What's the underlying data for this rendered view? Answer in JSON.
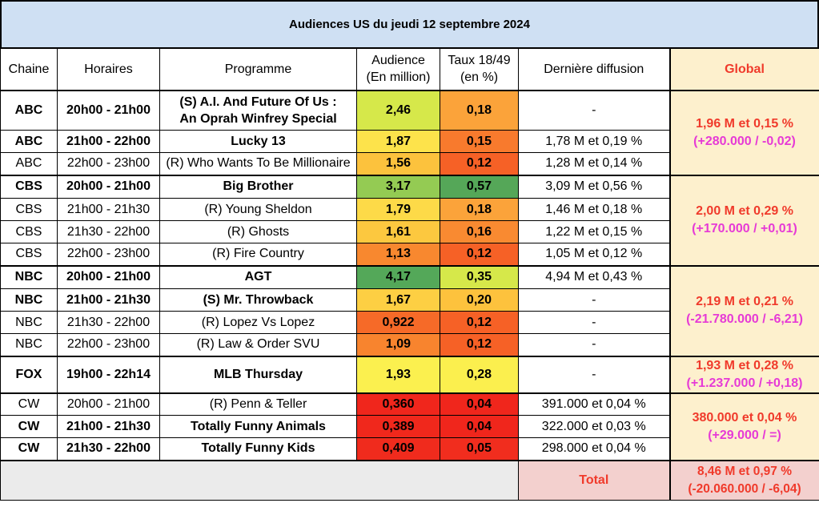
{
  "title": "Audiences US du jeudi 12 septembre 2024",
  "headers": {
    "chaine": "Chaine",
    "horaires": "Horaires",
    "programme": "Programme",
    "audience_l1": "Audience",
    "audience_l2": "(En million)",
    "taux_l1": "Taux 18/49",
    "taux_l2": "(en %)",
    "derniere": "Dernière diffusion",
    "global": "Global"
  },
  "rows": [
    {
      "chaine": "ABC",
      "horaires": "20h00 - 21h00",
      "programme_l1": "(S) A.I. And Future Of Us :",
      "programme_l2": "An Oprah Winfrey Special",
      "audience": "2,46",
      "taux": "0,18",
      "derniere": "-",
      "bold": true,
      "aud_color": "#d6e84a",
      "taux_color": "#fba33a"
    },
    {
      "chaine": "ABC",
      "horaires": "21h00 - 22h00",
      "programme": "Lucky 13",
      "audience": "1,87",
      "taux": "0,15",
      "derniere": "1,78 M et 0,19 %",
      "bold": true,
      "aud_color": "#fde34b",
      "taux_color": "#f87a2d"
    },
    {
      "chaine": "ABC",
      "horaires": "22h00 - 23h00",
      "programme": "(R) Who Wants To Be Millionaire",
      "audience": "1,56",
      "taux": "0,12",
      "derniere": "1,28 M et 0,14 %",
      "bold": false,
      "aud_color": "#fcc23d",
      "taux_color": "#f66126"
    },
    {
      "chaine": "CBS",
      "horaires": "20h00 - 21h00",
      "programme": "Big Brother",
      "audience": "3,17",
      "taux": "0,57",
      "derniere": "3,09 M et 0,56 %",
      "bold": true,
      "aud_color": "#94cb53",
      "taux_color": "#55a758"
    },
    {
      "chaine": "CBS",
      "horaires": "21h00 - 21h30",
      "programme": "(R) Young Sheldon",
      "audience": "1,79",
      "taux": "0,18",
      "derniere": "1,46 M et 0,18 %",
      "bold": false,
      "aud_color": "#fdda48",
      "taux_color": "#fba33a"
    },
    {
      "chaine": "CBS",
      "horaires": "21h30 - 22h00",
      "programme": "(R) Ghosts",
      "audience": "1,61",
      "taux": "0,16",
      "derniere": "1,22 M et 0,15 %",
      "bold": false,
      "aud_color": "#fcc83f",
      "taux_color": "#f98a31"
    },
    {
      "chaine": "CBS",
      "horaires": "22h00 - 23h00",
      "programme": "(R) Fire Country",
      "audience": "1,13",
      "taux": "0,12",
      "derniere": "1,05 M et 0,12 %",
      "bold": false,
      "aud_color": "#f8882f",
      "taux_color": "#f66126"
    },
    {
      "chaine": "NBC",
      "horaires": "20h00 - 21h00",
      "programme": "AGT",
      "audience": "4,17",
      "taux": "0,35",
      "derniere": "4,94 M et 0,43 %",
      "bold": true,
      "aud_color": "#54a859",
      "taux_color": "#d6e84a"
    },
    {
      "chaine": "NBC",
      "horaires": "21h00 - 21h30",
      "programme": "(S) Mr. Throwback",
      "audience": "1,67",
      "taux": "0,20",
      "derniere": "-",
      "bold": true,
      "aud_color": "#fdcf43",
      "taux_color": "#fdc23d"
    },
    {
      "chaine": "NBC",
      "horaires": "21h30 - 22h00",
      "programme": "(R) Lopez Vs Lopez",
      "audience": "0,922",
      "taux": "0,12",
      "derniere": "-",
      "bold": false,
      "aud_color": "#f66a28",
      "taux_color": "#f66126"
    },
    {
      "chaine": "NBC",
      "horaires": "22h00 - 23h00",
      "programme": "(R) Law & Order SVU",
      "audience": "1,09",
      "taux": "0,12",
      "derniere": "-",
      "bold": false,
      "aud_color": "#f8842e",
      "taux_color": "#f66126"
    },
    {
      "chaine": "FOX",
      "horaires": "19h00 - 22h14",
      "programme": "MLB Thursday",
      "audience": "1,93",
      "taux": "0,28",
      "derniere": "-",
      "bold": true,
      "aud_color": "#fbf04f",
      "taux_color": "#fbef4e"
    },
    {
      "chaine": "CW",
      "horaires": "20h00 - 21h00",
      "programme": "(R) Penn & Teller",
      "audience": "0,360",
      "taux": "0,04",
      "derniere": "391.000 et 0,04 %",
      "bold": false,
      "aud_color": "#f0261c",
      "taux_color": "#f0261c"
    },
    {
      "chaine": "CW",
      "horaires": "21h00 - 21h30",
      "programme": "Totally Funny Animals",
      "audience": "0,389",
      "taux": "0,04",
      "derniere": "322.000 et 0,03 %",
      "bold": true,
      "aud_color": "#f0281c",
      "taux_color": "#f0261c"
    },
    {
      "chaine": "CW",
      "horaires": "21h30 - 22h00",
      "programme": "Totally Funny Kids",
      "audience": "0,409",
      "taux": "0,05",
      "derniere": "298.000 et 0,04 %",
      "bold": true,
      "aud_color": "#f02b1d",
      "taux_color": "#f12d1e"
    }
  ],
  "globals": [
    {
      "value": "1,96 M et 0,15 %",
      "delta": "(+280.000 / -0,02)"
    },
    {
      "value": "2,00 M et 0,29 %",
      "delta": "(+170.000 / +0,01)"
    },
    {
      "value": "2,19 M et 0,21 %",
      "delta": "(-21.780.000 / -6,21)"
    },
    {
      "value": "1,93 M et 0,28 %",
      "delta": "(+1.237.000 / +0,18)"
    },
    {
      "value": "380.000 et 0,04 %",
      "delta": "(+29.000 / =)"
    }
  ],
  "total": {
    "label": "Total",
    "value": "8,46 M et 0,97 %",
    "delta": "(-20.060.000 / -6,04)"
  },
  "colors": {
    "title_bg": "#cfe0f3",
    "global_bg": "#fdf0cd",
    "global_text": "#f03a2b",
    "delta_text": "#e63ad6",
    "total_bg": "#f3d0ce",
    "empty_bg": "#ebebeb"
  }
}
